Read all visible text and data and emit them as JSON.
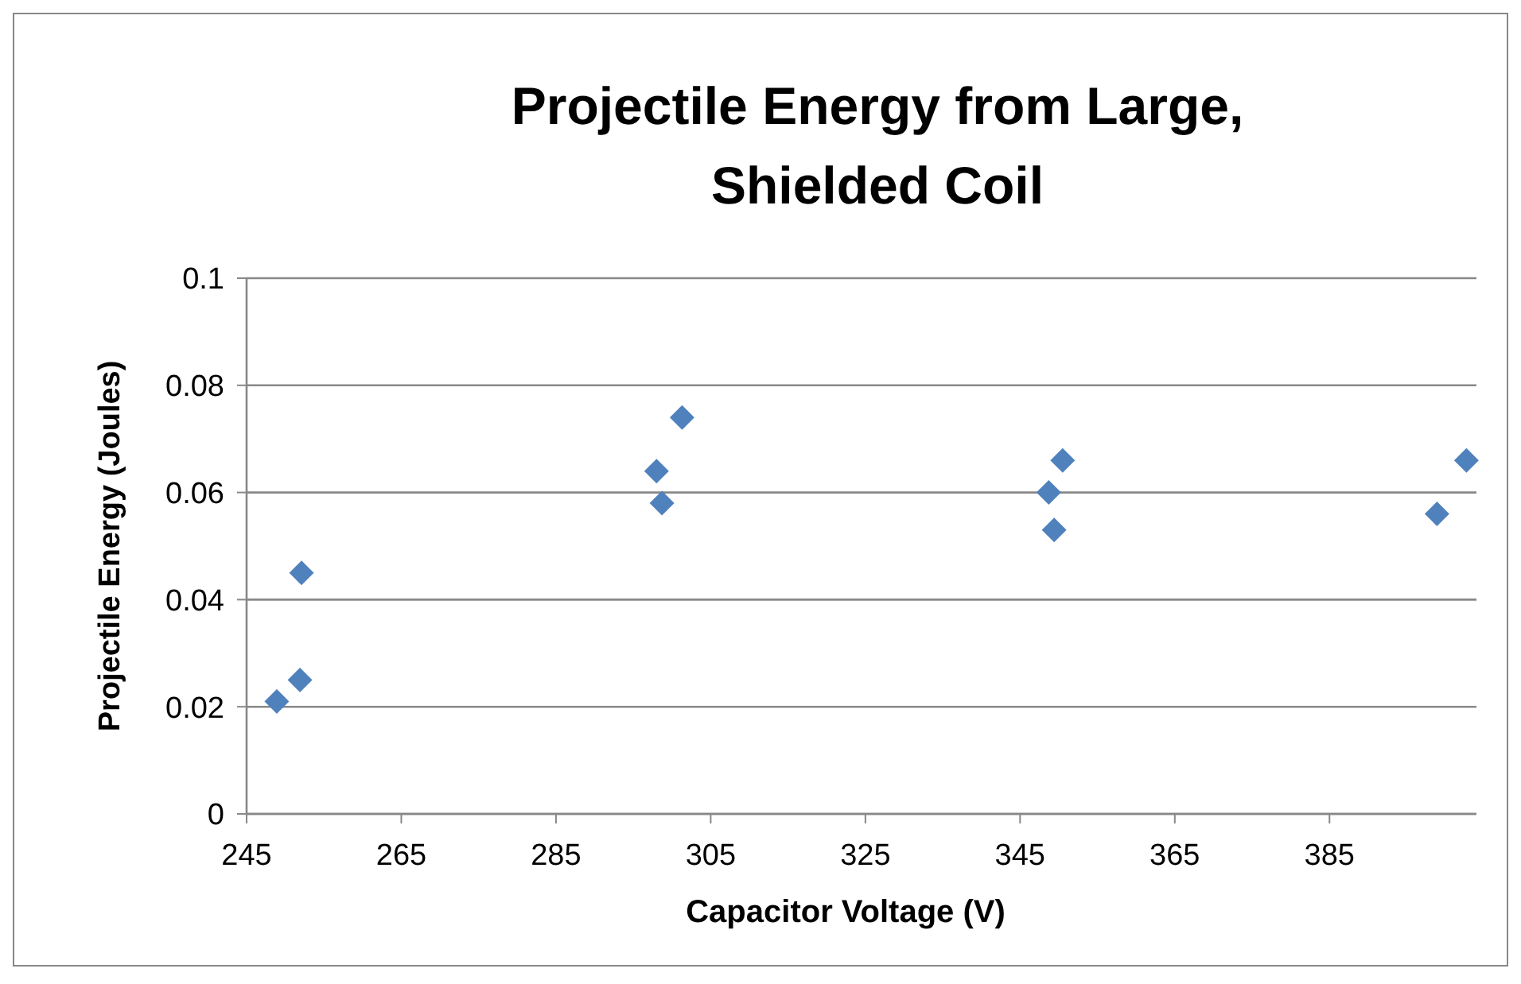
{
  "chart_data": {
    "type": "scatter",
    "title": "Projectile Energy from Large, Shielded Coil",
    "xlabel": "Capacitor Voltage (V)",
    "ylabel": "Projectile Energy (Joules)",
    "x": [
      248.9,
      251.9,
      252.1,
      298.0,
      298.7,
      301.3,
      350.5,
      348.7,
      349.4,
      398.9,
      402.7
    ],
    "values": [
      0.021,
      0.025,
      0.045,
      0.064,
      0.058,
      0.074,
      0.066,
      0.06,
      0.053,
      0.056,
      0.066
    ],
    "color": "#4f81bd",
    "marker": "diamond",
    "xlim": [
      245,
      404
    ],
    "xticks": [
      245,
      265,
      285,
      305,
      325,
      345,
      365,
      385
    ],
    "ylim": [
      0,
      0.1
    ],
    "yticks": [
      0,
      0.02,
      0.04,
      0.06,
      0.08,
      0.1
    ],
    "grid": "y"
  }
}
